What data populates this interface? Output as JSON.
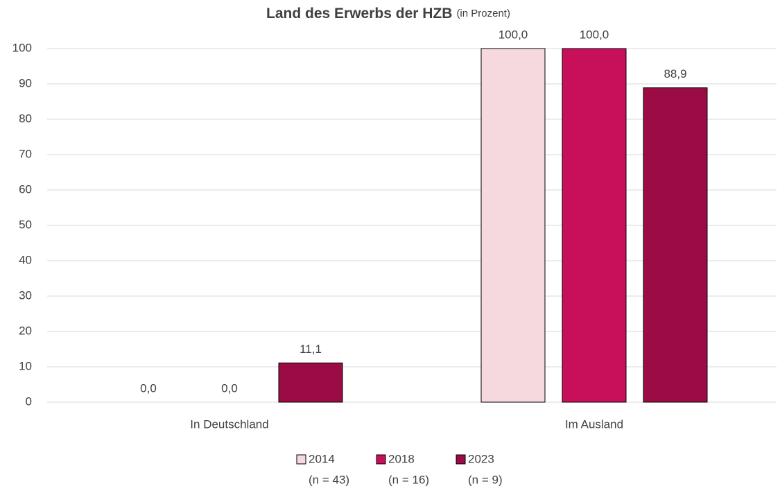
{
  "chart_data": {
    "type": "bar",
    "title": "Land des Erwerbs der HZB",
    "subtitle": "(in Prozent)",
    "categories": [
      "In Deutschland",
      "Im Ausland"
    ],
    "series": [
      {
        "name": "2014",
        "note": "(n = 43)",
        "color": "#f5d9de",
        "values": [
          0,
          100
        ],
        "value_labels": [
          "0,0",
          "100,0"
        ]
      },
      {
        "name": "2018",
        "note": "(n = 16)",
        "color": "#c8105a",
        "values": [
          0,
          100
        ],
        "value_labels": [
          "0,0",
          "100,0"
        ]
      },
      {
        "name": "2023",
        "note": "(n = 9)",
        "color": "#9b0c45",
        "values": [
          11.1,
          88.9
        ],
        "value_labels": [
          "11,1",
          "88,9"
        ]
      }
    ],
    "ylim": [
      0,
      100
    ],
    "yticks": [
      0,
      10,
      20,
      30,
      40,
      50,
      60,
      70,
      80,
      90,
      100
    ],
    "grid": true,
    "legend": "bottom"
  }
}
